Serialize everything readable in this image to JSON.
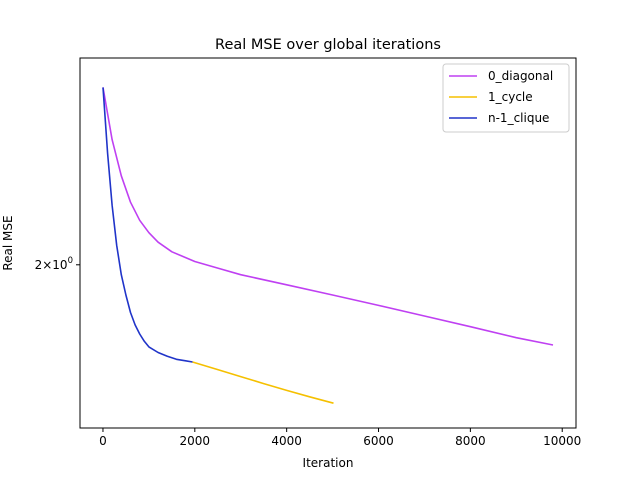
{
  "chart_data": {
    "type": "line",
    "title": "Real MSE over global iterations",
    "xlabel": "Iteration",
    "ylabel": "Real MSE",
    "y_scale": "log",
    "xlim": [
      -500,
      10300
    ],
    "ylim": [
      1.56,
      2.74
    ],
    "x_ticks": [
      0,
      2000,
      4000,
      6000,
      8000,
      10000
    ],
    "x_tick_labels": [
      "0",
      "2000",
      "4000",
      "6000",
      "8000",
      "10000"
    ],
    "y_ticks": [
      2
    ],
    "y_tick_labels": [
      "2×10⁰"
    ],
    "y_tick_base": "2×10",
    "y_tick_exponent": "0",
    "grid": false,
    "legend_position": "upper-right",
    "series": [
      {
        "name": "0_diagonal",
        "color": "#bf40f2",
        "x": [
          0,
          200,
          400,
          600,
          800,
          1000,
          1200,
          1500,
          2000,
          2500,
          3000,
          4000,
          5000,
          6000,
          7000,
          8000,
          9000,
          9800
        ],
        "y": [
          2.62,
          2.42,
          2.29,
          2.2,
          2.14,
          2.1,
          2.07,
          2.04,
          2.01,
          1.99,
          1.97,
          1.94,
          1.91,
          1.88,
          1.85,
          1.82,
          1.79,
          1.77
        ]
      },
      {
        "name": "1_cycle",
        "color": "#f5c000",
        "x": [
          1950,
          2500,
          3000,
          3500,
          4000,
          4500,
          5020
        ],
        "y": [
          1.725,
          1.705,
          1.687,
          1.669,
          1.652,
          1.636,
          1.62
        ]
      },
      {
        "name": "n-1_clique",
        "color": "#2034c9",
        "x": [
          0,
          100,
          200,
          300,
          400,
          500,
          600,
          700,
          800,
          900,
          1000,
          1200,
          1400,
          1600,
          1800,
          1950
        ],
        "y": [
          2.62,
          2.37,
          2.19,
          2.06,
          1.97,
          1.91,
          1.86,
          1.825,
          1.8,
          1.78,
          1.765,
          1.75,
          1.74,
          1.732,
          1.728,
          1.725
        ]
      }
    ]
  }
}
